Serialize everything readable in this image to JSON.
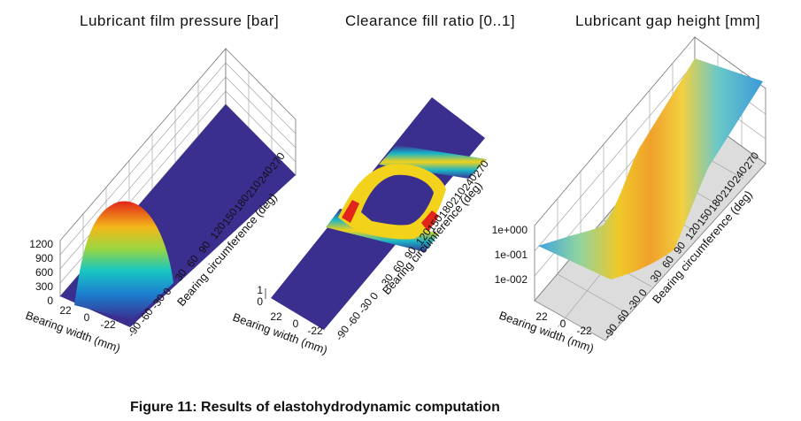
{
  "caption": "Figure 11: Results of elastohydrodynamic computation",
  "chart_data": [
    {
      "type": "surface3d",
      "title": "Lubricant film pressure [bar]",
      "xlabel": "Bearing width (mm)",
      "ylabel": "Bearing circumference (deg)",
      "x_ticks": [
        "22",
        "0",
        "-22"
      ],
      "y_ticks": [
        "-90",
        "-60",
        "-30",
        "0",
        "30",
        "60",
        "90",
        "120",
        "150",
        "180",
        "210",
        "240",
        "270"
      ],
      "z_ticks": [
        "0",
        "300",
        "600",
        "900",
        "1200"
      ],
      "zlim": [
        0,
        1200
      ],
      "peak": {
        "y_deg": -45,
        "z": 1000
      },
      "colors": {
        "low": "#3a2e8f",
        "mid": "#19b5c7",
        "high": "#e8201a"
      }
    },
    {
      "type": "surface3d",
      "title": "Clearance fill ratio [0..1]",
      "xlabel": "Bearing width (mm)",
      "ylabel": "Bearing circumference (deg)",
      "x_ticks": [
        "22",
        "0",
        "-22"
      ],
      "y_ticks": [
        "-90",
        "-60",
        "-30",
        "0",
        "30",
        "60",
        "90",
        "120",
        "150",
        "180",
        "210",
        "240",
        "270"
      ],
      "z_ticks": [
        "0",
        "1"
      ],
      "zlim": [
        0,
        1
      ],
      "colors": {
        "low": "#3a2e8f",
        "mid": "#19b5c7",
        "high": "#e8201a"
      }
    },
    {
      "type": "surface3d",
      "title": "Lubricant gap height [mm]",
      "xlabel": "Bearing width (mm)",
      "ylabel": "Bearing circumference (deg)",
      "x_ticks": [
        "22",
        "0",
        "-22"
      ],
      "y_ticks": [
        "-90",
        "-60",
        "-30",
        "0",
        "30",
        "60",
        "90",
        "120",
        "150",
        "180",
        "210",
        "240",
        "270"
      ],
      "z_ticks": [
        "1e-002",
        "1e-001",
        "1e+000"
      ],
      "z_scale": "log",
      "colors": {
        "low": "#3a9ad8",
        "mid": "#f2c21a",
        "high": "#e2401a"
      }
    }
  ]
}
